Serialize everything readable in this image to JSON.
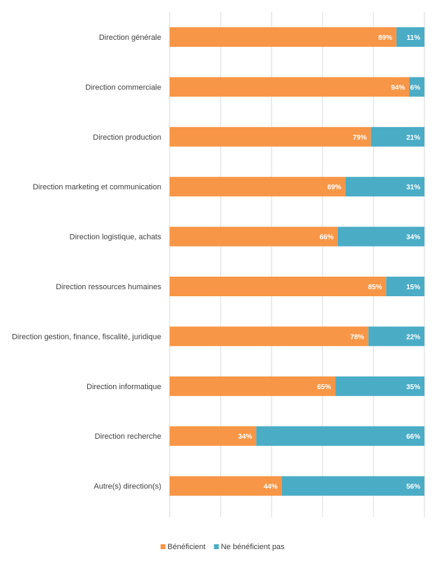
{
  "chart_data": {
    "type": "bar",
    "orientation": "horizontal",
    "stacked": true,
    "percent": true,
    "xlim": [
      0,
      100
    ],
    "grid": true,
    "legend_position": "bottom",
    "categories": [
      "Direction générale",
      "Direction commerciale",
      "Direction production",
      "Direction marketing et communication",
      "Direction logistique, achats",
      "Direction ressources humaines",
      "Direction gestion, finance, fiscalité, juridique",
      "Direction informatique",
      "Direction recherche",
      "Autre(s) direction(s)"
    ],
    "series": [
      {
        "name": "Bénéficient",
        "color": "#f79646",
        "values": [
          89,
          94,
          79,
          69,
          66,
          85,
          78,
          65,
          34,
          44
        ],
        "labels": [
          "89%",
          "94%",
          "79%",
          "69%",
          "66%",
          "85%",
          "78%",
          "65%",
          "34%",
          "44%"
        ]
      },
      {
        "name": "Ne bénéficient pas",
        "color": "#4bacc6",
        "values": [
          11,
          6,
          21,
          31,
          34,
          15,
          22,
          35,
          66,
          56
        ],
        "labels": [
          "11%",
          "6%",
          "21%",
          "31%",
          "34%",
          "15%",
          "22%",
          "35%",
          "66%",
          "56%"
        ]
      }
    ]
  },
  "style": {
    "grid_color": "#d9d9d9",
    "text_color": "#404040"
  }
}
